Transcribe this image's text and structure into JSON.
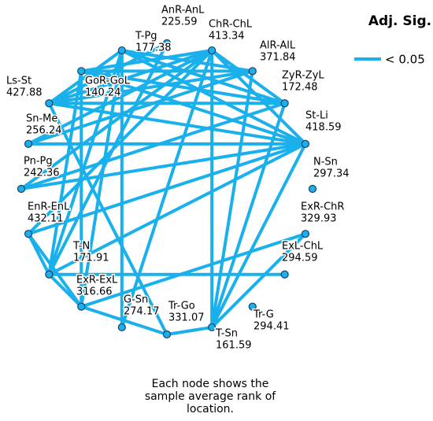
{
  "legend": {
    "title": "Adj. Sig.",
    "entries": [
      "< 0.05"
    ]
  },
  "nodes": [
    {
      "label": "AnR-AnL",
      "rank": "225.59"
    },
    {
      "label": "ChR-ChL",
      "rank": "413.34"
    },
    {
      "label": "AlR-AlL",
      "rank": "371.84"
    },
    {
      "label": "ZyR-ZyL",
      "rank": "172.48"
    },
    {
      "label": "St-Li",
      "rank": "418.59"
    },
    {
      "label": "N-Sn",
      "rank": "297.34"
    },
    {
      "label": "ExR-ChR",
      "rank": "329.93"
    },
    {
      "label": "ExL-ChL",
      "rank": "294.59"
    },
    {
      "label": "Tr-G",
      "rank": "294.41"
    },
    {
      "label": "T-Sn",
      "rank": "161.59"
    },
    {
      "label": "Tr-Go",
      "rank": "331.07"
    },
    {
      "label": "G-Sn",
      "rank": "274.17"
    },
    {
      "label": "ExR-ExL",
      "rank": "316.66"
    },
    {
      "label": "T-N",
      "rank": "171.91"
    },
    {
      "label": "EnR-EnL",
      "rank": "432.11"
    },
    {
      "label": "Pn-Pg",
      "rank": "242.36"
    },
    {
      "label": "Sn-Me",
      "rank": "256.24"
    },
    {
      "label": "Ls-St",
      "rank": "427.88"
    },
    {
      "label": "GoR-GoL",
      "rank": "140.24"
    },
    {
      "label": "T-Pg",
      "rank": "177.38"
    }
  ],
  "footer": "Each node shows the sample average rank of location."
}
